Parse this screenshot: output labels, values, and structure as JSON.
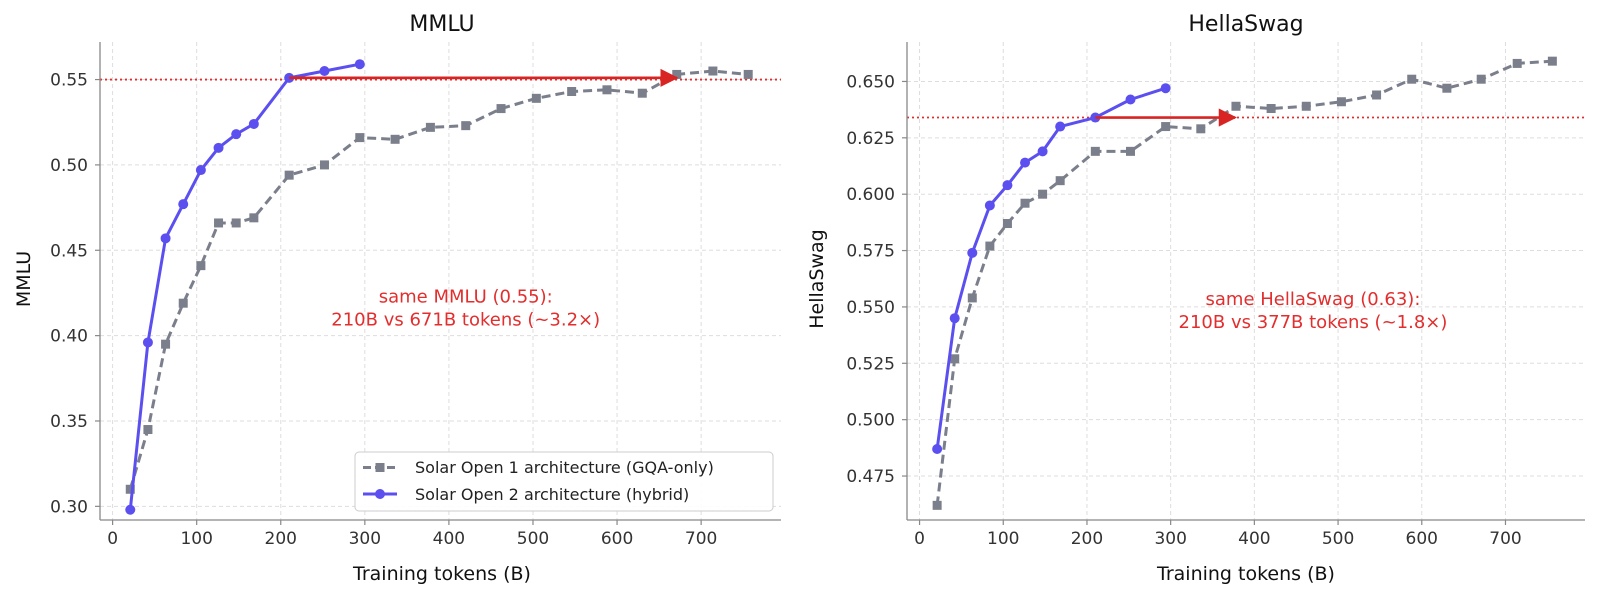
{
  "colors": {
    "gqa": "#7b7f8c",
    "hybrid": "#5b4ff0",
    "annotation": "#e32e2e",
    "grid": "#dddddd",
    "axis": "#888888"
  },
  "legend": {
    "gqa_label": "Solar Open 1 architecture (GQA-only)",
    "hybrid_label": "Solar Open 2 architecture (hybrid)"
  },
  "chart_data": [
    {
      "type": "line",
      "title": "MMLU",
      "xlabel": "Training tokens (B)",
      "ylabel": "MMLU",
      "xlim": [
        -15,
        795
      ],
      "ylim": [
        0.292,
        0.572
      ],
      "xticks": [
        0,
        100,
        200,
        300,
        400,
        500,
        600,
        700
      ],
      "yticks": [
        0.3,
        0.35,
        0.4,
        0.45,
        0.5,
        0.55
      ],
      "ytick_labels": [
        "0.30",
        "0.35",
        "0.40",
        "0.45",
        "0.50",
        "0.55"
      ],
      "grid": true,
      "legend_position": "lower-right",
      "series": [
        {
          "name": "Solar Open 1 architecture (GQA-only)",
          "style": "dashed-square",
          "x": [
            21,
            42,
            63,
            84,
            105,
            126,
            147,
            168,
            210,
            252,
            294,
            336,
            378,
            420,
            462,
            504,
            546,
            588,
            630,
            671,
            714,
            756
          ],
          "y": [
            0.31,
            0.345,
            0.395,
            0.419,
            0.441,
            0.466,
            0.466,
            0.469,
            0.494,
            0.5,
            0.516,
            0.515,
            0.522,
            0.523,
            0.533,
            0.539,
            0.543,
            0.544,
            0.542,
            0.553,
            0.555,
            0.553
          ]
        },
        {
          "name": "Solar Open 2 architecture (hybrid)",
          "style": "solid-circle",
          "x": [
            21,
            42,
            63,
            84,
            105,
            126,
            147,
            168,
            210,
            252,
            294
          ],
          "y": [
            0.298,
            0.396,
            0.457,
            0.477,
            0.497,
            0.51,
            0.518,
            0.524,
            0.551,
            0.555,
            0.559
          ]
        }
      ],
      "reference_line": {
        "y": 0.55
      },
      "arrow": {
        "x_from": 210,
        "x_to": 671,
        "y": 0.551
      },
      "annotation": {
        "line1": "same MMLU (0.55):",
        "line2": "210B vs 671B tokens (~3.2×)",
        "x": 420,
        "y": 0.417
      }
    },
    {
      "type": "line",
      "title": "HellaSwag",
      "xlabel": "Training tokens (B)",
      "ylabel": "HellaSwag",
      "xlim": [
        -15,
        795
      ],
      "ylim": [
        0.4555,
        0.6675
      ],
      "xticks": [
        0,
        100,
        200,
        300,
        400,
        500,
        600,
        700
      ],
      "yticks": [
        0.475,
        0.5,
        0.525,
        0.55,
        0.575,
        0.6,
        0.625,
        0.65
      ],
      "ytick_labels": [
        "0.475",
        "0.500",
        "0.525",
        "0.550",
        "0.575",
        "0.600",
        "0.625",
        "0.650"
      ],
      "grid": true,
      "legend_position": "none",
      "series": [
        {
          "name": "Solar Open 1 architecture (GQA-only)",
          "style": "dashed-square",
          "x": [
            21,
            42,
            63,
            84,
            105,
            126,
            147,
            168,
            210,
            252,
            294,
            336,
            378,
            420,
            462,
            504,
            546,
            588,
            630,
            671,
            714,
            756
          ],
          "y": [
            0.462,
            0.527,
            0.554,
            0.577,
            0.587,
            0.596,
            0.6,
            0.606,
            0.619,
            0.619,
            0.63,
            0.629,
            0.639,
            0.638,
            0.639,
            0.641,
            0.644,
            0.651,
            0.647,
            0.651,
            0.658,
            0.659
          ]
        },
        {
          "name": "Solar Open 2 architecture (hybrid)",
          "style": "solid-circle",
          "x": [
            21,
            42,
            63,
            84,
            105,
            126,
            147,
            168,
            210,
            252,
            294
          ],
          "y": [
            0.487,
            0.545,
            0.574,
            0.595,
            0.604,
            0.614,
            0.619,
            0.63,
            0.634,
            0.642,
            0.647
          ]
        }
      ],
      "reference_line": {
        "y": 0.634
      },
      "arrow": {
        "x_from": 210,
        "x_to": 377,
        "y": 0.634
      },
      "annotation": {
        "line1": "same HellaSwag (0.63):",
        "line2": "210B vs 377B tokens (~1.8×)",
        "x": 470,
        "y": 0.549
      }
    }
  ]
}
